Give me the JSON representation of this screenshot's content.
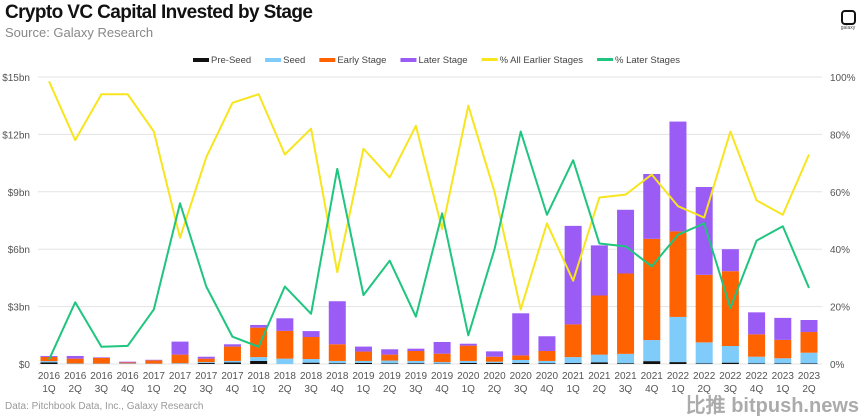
{
  "chart_data": {
    "type": "bar",
    "stacked": true,
    "title": "Crypto VC Capital Invested by Stage",
    "subtitle": "Source: Galaxy Research",
    "footnote": "Data: Pitchbook Data, Inc., Galaxy Research",
    "legend_position": "top",
    "grid": true,
    "categories": [
      "2016 1Q",
      "2016 2Q",
      "2016 3Q",
      "2016 4Q",
      "2017 1Q",
      "2017 2Q",
      "2017 3Q",
      "2017 4Q",
      "2018 1Q",
      "2018 2Q",
      "2018 3Q",
      "2018 4Q",
      "2019 1Q",
      "2019 2Q",
      "2019 3Q",
      "2019 4Q",
      "2020 1Q",
      "2020 2Q",
      "2020 3Q",
      "2020 4Q",
      "2021 1Q",
      "2021 2Q",
      "2021 3Q",
      "2021 4Q",
      "2022 1Q",
      "2022 2Q",
      "2022 3Q",
      "2022 4Q",
      "2023 1Q",
      "2023 2Q"
    ],
    "y_left": {
      "ylim": [
        0,
        15
      ],
      "unit": "$bn",
      "ticks": [
        "$0",
        "$3bn",
        "$6bn",
        "$9bn",
        "$12bn",
        "$15bn"
      ],
      "tick_values": [
        0,
        3,
        6,
        9,
        12,
        15
      ]
    },
    "y_right": {
      "ylim": [
        0,
        100
      ],
      "unit": "%",
      "ticks": [
        "0%",
        "20%",
        "40%",
        "60%",
        "80%",
        "100%"
      ],
      "tick_values": [
        0,
        20,
        40,
        60,
        80,
        100
      ]
    },
    "series": [
      {
        "name": "Pre-Seed",
        "kind": "bar",
        "axis": "left",
        "color": "#111111",
        "values": [
          0.08,
          0.01,
          0.0,
          0.0,
          0.0,
          0.0,
          0.05,
          0.08,
          0.16,
          0.0,
          0.07,
          0.04,
          0.06,
          0.03,
          0.04,
          0.02,
          0.06,
          0.06,
          0.06,
          0.04,
          0.05,
          0.09,
          0.04,
          0.15,
          0.1,
          0.03,
          0.07,
          0.03,
          0.03,
          0.03
        ]
      },
      {
        "name": "Seed",
        "kind": "bar",
        "axis": "left",
        "color": "#7fcbfa",
        "values": [
          0.07,
          0.02,
          0.02,
          0.03,
          0.02,
          0.04,
          0.05,
          0.08,
          0.2,
          0.28,
          0.19,
          0.12,
          0.1,
          0.15,
          0.12,
          0.08,
          0.1,
          0.06,
          0.15,
          0.12,
          0.31,
          0.4,
          0.49,
          1.1,
          2.36,
          1.1,
          0.87,
          0.35,
          0.27,
          0.56
        ]
      },
      {
        "name": "Early Stage",
        "kind": "bar",
        "axis": "left",
        "color": "#ff6200",
        "values": [
          0.22,
          0.25,
          0.3,
          0.05,
          0.17,
          0.45,
          0.18,
          0.75,
          1.54,
          1.45,
          1.15,
          0.87,
          0.49,
          0.31,
          0.52,
          0.44,
          0.8,
          0.26,
          0.24,
          0.52,
          1.71,
          3.09,
          4.2,
          5.29,
          4.47,
          3.53,
          3.91,
          1.17,
          0.96,
          1.08
        ]
      },
      {
        "name": "Later Stage",
        "kind": "bar",
        "axis": "left",
        "color": "#9b5cf6",
        "values": [
          0.05,
          0.14,
          0.03,
          0.04,
          0.03,
          0.68,
          0.1,
          0.12,
          0.14,
          0.66,
          0.31,
          2.25,
          0.26,
          0.28,
          0.12,
          0.61,
          0.1,
          0.28,
          2.2,
          0.77,
          5.15,
          2.62,
          3.33,
          3.39,
          5.74,
          4.59,
          1.15,
          1.15,
          1.15,
          0.63
        ]
      },
      {
        "name": "% All Earlier Stages",
        "kind": "line",
        "axis": "right",
        "color": "#f7e51e",
        "values": [
          98.5,
          78,
          94,
          94,
          81,
          44,
          72,
          91,
          94,
          73,
          82,
          32,
          75,
          65,
          83,
          47,
          90,
          60,
          19,
          49,
          29,
          58,
          59,
          66,
          55,
          51,
          81,
          57,
          52,
          73
        ]
      },
      {
        "name": "% Later Stages",
        "kind": "line",
        "axis": "right",
        "color": "#1fc57f",
        "values": [
          1.5,
          21.5,
          6,
          6.3,
          19,
          56,
          27,
          9.5,
          6,
          27,
          17.5,
          68,
          24,
          36,
          16.5,
          52.5,
          10,
          40,
          81,
          52,
          71,
          42,
          41,
          34,
          45,
          49,
          19.5,
          43,
          48,
          26.5
        ]
      }
    ]
  },
  "logo_text": "galaxy",
  "watermark": "比推 bitpush.news"
}
